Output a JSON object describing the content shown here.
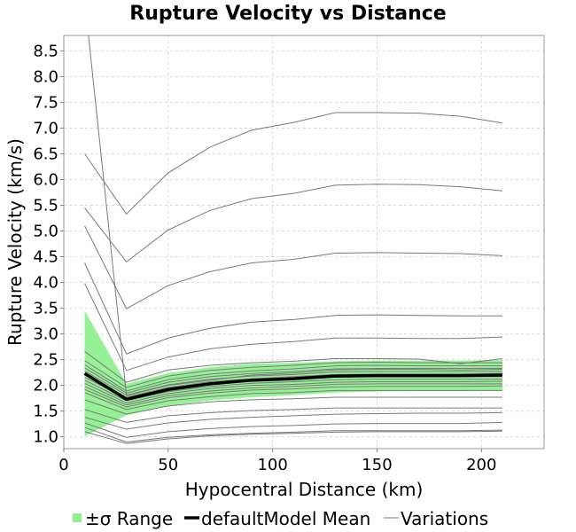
{
  "chart_data": {
    "type": "line",
    "title": "Rupture Velocity vs Distance",
    "xlabel": "Hypocentral Distance (km)",
    "ylabel": "Rupture Velocity (km/s)",
    "xlim": [
      0,
      230
    ],
    "ylim": [
      0.77,
      8.8
    ],
    "xticks": [
      0,
      50,
      100,
      150,
      200
    ],
    "yticks": [
      1.0,
      1.5,
      2.0,
      2.5,
      3.0,
      3.5,
      4.0,
      4.5,
      5.0,
      5.5,
      6.0,
      6.5,
      7.0,
      7.5,
      8.0,
      8.5
    ],
    "grid": true,
    "legend_position": "bottom",
    "legend": [
      {
        "label": "±σ Range",
        "color": "#90f090"
      },
      {
        "label": "defaultModel Mean",
        "color": "#000000"
      },
      {
        "label": "Variations",
        "color": "#808080"
      }
    ],
    "x": [
      10,
      30,
      50,
      70,
      90,
      110,
      130,
      150,
      170,
      190,
      210
    ],
    "mean": {
      "name": "defaultModel Mean",
      "values": [
        2.23,
        1.73,
        1.92,
        2.03,
        2.1,
        2.13,
        2.18,
        2.19,
        2.19,
        2.19,
        2.2
      ]
    },
    "band_upper": [
      3.45,
      2.03,
      2.24,
      2.35,
      2.42,
      2.44,
      2.47,
      2.48,
      2.48,
      2.48,
      2.49
    ],
    "band_lower": [
      1.01,
      1.42,
      1.6,
      1.71,
      1.77,
      1.81,
      1.86,
      1.88,
      1.89,
      1.89,
      1.9
    ],
    "variations": [
      [
        9.5,
        1.8,
        2.0,
        2.1,
        2.2,
        2.24,
        2.3,
        2.31,
        2.31,
        2.3,
        2.31
      ],
      [
        6.5,
        5.33,
        6.13,
        6.63,
        6.96,
        7.11,
        7.3,
        7.3,
        7.29,
        7.23,
        7.1
      ],
      [
        5.45,
        4.4,
        5.02,
        5.4,
        5.63,
        5.73,
        5.89,
        5.91,
        5.9,
        5.86,
        5.78
      ],
      [
        5.1,
        3.49,
        3.94,
        4.21,
        4.38,
        4.45,
        4.57,
        4.58,
        4.57,
        4.56,
        4.52
      ],
      [
        4.38,
        2.61,
        2.92,
        3.11,
        3.23,
        3.28,
        3.36,
        3.37,
        3.36,
        3.35,
        3.35
      ],
      [
        3.98,
        2.29,
        2.55,
        2.71,
        2.8,
        2.85,
        2.92,
        2.92,
        2.91,
        2.91,
        2.94
      ],
      [
        2.66,
        2.06,
        2.3,
        2.39,
        2.44,
        2.47,
        2.52,
        2.52,
        2.51,
        2.42,
        2.52
      ],
      [
        2.48,
        1.96,
        2.18,
        2.29,
        2.35,
        2.39,
        2.44,
        2.45,
        2.44,
        2.44,
        2.44
      ],
      [
        2.4,
        1.89,
        2.11,
        2.22,
        2.28,
        2.32,
        2.38,
        2.39,
        2.38,
        2.38,
        2.38
      ],
      [
        2.34,
        1.85,
        2.06,
        2.17,
        2.23,
        2.27,
        2.32,
        2.33,
        2.33,
        2.33,
        2.33
      ],
      [
        2.28,
        1.81,
        2.01,
        2.12,
        2.18,
        2.21,
        2.26,
        2.27,
        2.27,
        2.27,
        2.27
      ],
      [
        2.22,
        1.77,
        1.96,
        2.07,
        2.13,
        2.17,
        2.21,
        2.22,
        2.22,
        2.22,
        2.23
      ],
      [
        2.16,
        1.74,
        1.93,
        2.03,
        2.09,
        2.12,
        2.16,
        2.17,
        2.17,
        2.17,
        2.17
      ],
      [
        2.1,
        1.7,
        1.88,
        1.98,
        2.04,
        2.07,
        2.11,
        2.12,
        2.12,
        2.12,
        2.12
      ],
      [
        2.04,
        1.66,
        1.84,
        1.94,
        2.0,
        2.02,
        2.06,
        2.07,
        2.07,
        2.07,
        2.08
      ],
      [
        1.98,
        1.62,
        1.8,
        1.89,
        1.95,
        1.98,
        2.02,
        2.03,
        2.03,
        2.03,
        2.03
      ],
      [
        1.92,
        1.58,
        1.76,
        1.85,
        1.91,
        1.93,
        1.97,
        1.98,
        1.98,
        1.98,
        1.99
      ],
      [
        1.86,
        1.53,
        1.7,
        1.78,
        1.84,
        1.86,
        1.9,
        1.9,
        1.9,
        1.9,
        1.9
      ],
      [
        1.72,
        1.44,
        1.6,
        1.68,
        1.72,
        1.74,
        1.77,
        1.77,
        1.77,
        1.77,
        1.77
      ],
      [
        1.53,
        1.28,
        1.41,
        1.47,
        1.51,
        1.53,
        1.56,
        1.56,
        1.56,
        1.56,
        1.56
      ],
      [
        1.38,
        1.15,
        1.27,
        1.34,
        1.38,
        1.41,
        1.44,
        1.45,
        1.46,
        1.46,
        1.47
      ],
      [
        1.27,
        0.99,
        1.1,
        1.16,
        1.2,
        1.22,
        1.25,
        1.26,
        1.26,
        1.26,
        1.28
      ],
      [
        1.18,
        0.9,
        0.99,
        1.04,
        1.07,
        1.09,
        1.12,
        1.12,
        1.12,
        1.12,
        1.13
      ],
      [
        1.1,
        0.87,
        0.96,
        1.02,
        1.05,
        1.07,
        1.09,
        1.1,
        1.1,
        1.1,
        1.11
      ]
    ]
  }
}
